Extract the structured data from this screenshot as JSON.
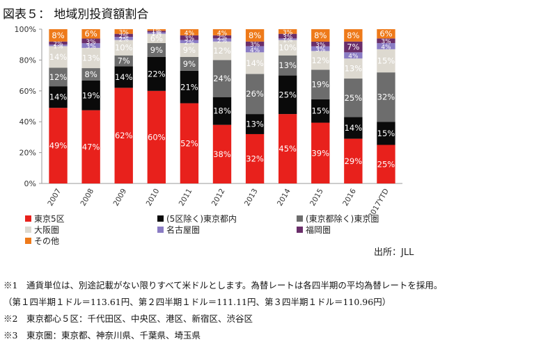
{
  "page": {
    "title": "図表５： 地域別投資額割合",
    "source": "出所：JLL",
    "notes": [
      "※1　通貨単位は、別途記載がない限りすべて米ドルとします。為替レートは各四半期の平均為替レートを採用。",
      "（第１四半期１ドル＝113.61円、第２四半期１ドル＝111.11円、第３四半期１ドル＝110.96円）",
      "※2　東京都心５区：千代田区、中央区、港区、新宿区、渋谷区",
      "※3　東京圏：東京都、神奈川県、千葉県、埼玉県"
    ]
  },
  "chart_data": {
    "type": "bar",
    "stacked": true,
    "percent": true,
    "title": "",
    "xlabel": "",
    "ylabel": "",
    "ylim": [
      0,
      100
    ],
    "y_ticks": [
      "0%",
      "20%",
      "40%",
      "60%",
      "80%",
      "100%"
    ],
    "grid": false,
    "legend_position": "bottom",
    "categories": [
      "2007",
      "2008",
      "2009",
      "2010",
      "2011",
      "2012",
      "2013",
      "2014",
      "2015",
      "2016",
      "2017YTD"
    ],
    "series": [
      {
        "name": "東京5区",
        "color": "#e8211c",
        "values": [
          49,
          47,
          62,
          60,
          52,
          38,
          32,
          45,
          39,
          29,
          25
        ]
      },
      {
        "name": "(5区除く)東京都内",
        "color": "#0a0a0a",
        "values": [
          14,
          19,
          14,
          22,
          21,
          18,
          13,
          25,
          15,
          14,
          15
        ]
      },
      {
        "name": "(東京都除く)東京圏",
        "color": "#6d6d6d",
        "values": [
          12,
          8,
          7,
          9,
          9,
          24,
          26,
          13,
          19,
          25,
          32
        ]
      },
      {
        "name": "大阪圏",
        "color": "#ddd9d0",
        "values": [
          14,
          13,
          10,
          6,
          9,
          12,
          14,
          10,
          12,
          13,
          15
        ]
      },
      {
        "name": "名古屋圏",
        "color": "#8a7cc4",
        "values": [
          1,
          3,
          2,
          1,
          2,
          2,
          4,
          1,
          3,
          4,
          4
        ]
      },
      {
        "name": "福岡圏",
        "color": "#6a2e6a",
        "values": [
          2,
          3,
          2,
          1,
          3,
          2,
          3,
          3,
          3,
          7,
          3
        ]
      },
      {
        "name": "その他",
        "color": "#ee7a1a",
        "values": [
          8,
          6,
          3,
          1,
          4,
          4,
          8,
          3,
          8,
          8,
          6
        ]
      }
    ]
  }
}
